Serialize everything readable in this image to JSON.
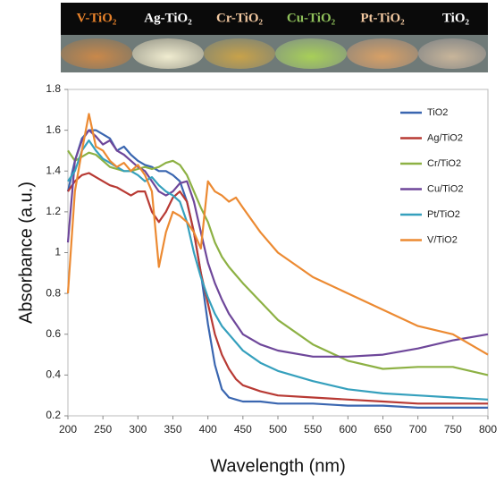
{
  "banner": {
    "labels": [
      {
        "text": "V-TiO₂",
        "color": "#e8822a"
      },
      {
        "text": "Ag-TiO₂",
        "color": "#ffffff"
      },
      {
        "text": "Cr-TiO₂",
        "color": "#f2c8a0"
      },
      {
        "text": "Cu-TiO₂",
        "color": "#8fc05a"
      },
      {
        "text": "Pt-TiO₂",
        "color": "#f2c8a0"
      },
      {
        "text": "TiO₂",
        "color": "#ffffff"
      }
    ]
  },
  "chart_data": {
    "type": "line",
    "x_label": "Wavelength (nm)",
    "y_label": "Absorbance (a.u.)",
    "xlim": [
      200,
      800
    ],
    "xticks": [
      200,
      250,
      300,
      350,
      400,
      450,
      500,
      550,
      600,
      650,
      700,
      750,
      800
    ],
    "ylim": [
      0.2,
      1.8
    ],
    "yticks": [
      0.2,
      0.4,
      0.6,
      0.8,
      1,
      1.2,
      1.4,
      1.6,
      1.8
    ],
    "legend": "upper right",
    "x": [
      200,
      210,
      220,
      230,
      240,
      250,
      260,
      270,
      280,
      290,
      300,
      310,
      320,
      330,
      340,
      350,
      360,
      370,
      380,
      390,
      400,
      410,
      420,
      430,
      440,
      450,
      475,
      500,
      550,
      600,
      650,
      700,
      750,
      800
    ],
    "series": [
      {
        "name": "TiO2",
        "color": "#3a66b0",
        "values": [
          1.3,
          1.45,
          1.56,
          1.6,
          1.6,
          1.58,
          1.56,
          1.5,
          1.52,
          1.48,
          1.45,
          1.43,
          1.42,
          1.4,
          1.4,
          1.38,
          1.35,
          1.25,
          1.1,
          0.9,
          0.65,
          0.45,
          0.33,
          0.29,
          0.28,
          0.27,
          0.27,
          0.26,
          0.26,
          0.25,
          0.25,
          0.24,
          0.24,
          0.24
        ]
      },
      {
        "name": "Ag/TiO2",
        "color": "#b83a34",
        "values": [
          1.3,
          1.35,
          1.38,
          1.39,
          1.37,
          1.35,
          1.33,
          1.32,
          1.3,
          1.28,
          1.3,
          1.3,
          1.2,
          1.15,
          1.2,
          1.27,
          1.3,
          1.25,
          1.1,
          0.9,
          0.75,
          0.6,
          0.5,
          0.43,
          0.38,
          0.35,
          0.32,
          0.3,
          0.29,
          0.28,
          0.27,
          0.26,
          0.26,
          0.26
        ]
      },
      {
        "name": "Cr/TiO2",
        "color": "#8db144",
        "values": [
          1.5,
          1.45,
          1.47,
          1.49,
          1.48,
          1.45,
          1.42,
          1.41,
          1.4,
          1.4,
          1.41,
          1.42,
          1.41,
          1.42,
          1.44,
          1.45,
          1.43,
          1.38,
          1.3,
          1.22,
          1.15,
          1.05,
          0.98,
          0.93,
          0.89,
          0.85,
          0.76,
          0.67,
          0.55,
          0.47,
          0.43,
          0.44,
          0.44,
          0.4
        ]
      },
      {
        "name": "Cu/TiO2",
        "color": "#6e479a",
        "values": [
          1.05,
          1.45,
          1.55,
          1.6,
          1.57,
          1.53,
          1.55,
          1.5,
          1.48,
          1.45,
          1.42,
          1.4,
          1.35,
          1.3,
          1.28,
          1.3,
          1.34,
          1.35,
          1.25,
          1.1,
          0.95,
          0.85,
          0.77,
          0.7,
          0.65,
          0.6,
          0.55,
          0.52,
          0.49,
          0.49,
          0.5,
          0.53,
          0.57,
          0.6
        ]
      },
      {
        "name": "Pt/TiO2",
        "color": "#35a0bd",
        "values": [
          1.35,
          1.4,
          1.5,
          1.55,
          1.5,
          1.46,
          1.44,
          1.42,
          1.4,
          1.4,
          1.38,
          1.35,
          1.37,
          1.33,
          1.3,
          1.28,
          1.25,
          1.15,
          1.0,
          0.88,
          0.78,
          0.7,
          0.64,
          0.6,
          0.56,
          0.52,
          0.46,
          0.42,
          0.37,
          0.33,
          0.31,
          0.3,
          0.29,
          0.28
        ]
      },
      {
        "name": "V/TiO2",
        "color": "#ec8a32",
        "values": [
          0.8,
          1.3,
          1.5,
          1.68,
          1.52,
          1.5,
          1.45,
          1.42,
          1.44,
          1.4,
          1.43,
          1.38,
          1.3,
          0.93,
          1.1,
          1.2,
          1.18,
          1.15,
          1.1,
          1.02,
          1.35,
          1.3,
          1.28,
          1.25,
          1.27,
          1.22,
          1.1,
          1.0,
          0.88,
          0.8,
          0.72,
          0.64,
          0.6,
          0.5
        ]
      }
    ]
  }
}
